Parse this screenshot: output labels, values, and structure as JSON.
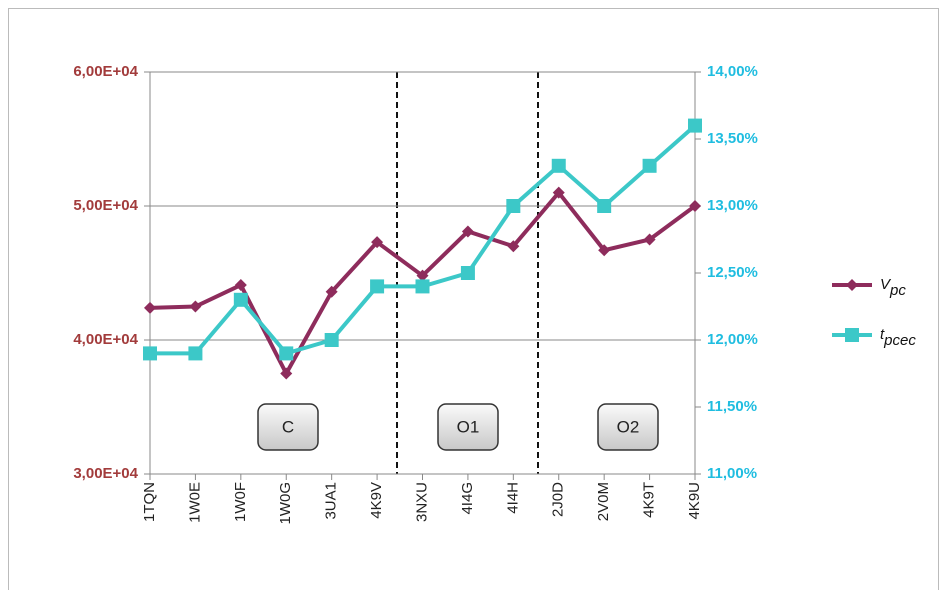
{
  "chart_data": {
    "type": "line",
    "categories": [
      "1TQN",
      "1W0E",
      "1W0F",
      "1W0G",
      "3UA1",
      "4K9V",
      "3NXU",
      "4I4G",
      "4I4H",
      "2J0D",
      "2V0M",
      "4K9T",
      "4K9U"
    ],
    "series": [
      {
        "name": "Vpc",
        "color": "#8e2c5c",
        "marker": "diamond",
        "values": [
          42400,
          42500,
          44100,
          37500,
          43600,
          47300,
          44800,
          48100,
          47000,
          51000,
          46700,
          47500,
          50000
        ]
      },
      {
        "name": "tpcec",
        "color": "#3cc8c8",
        "marker": "square",
        "axis": "y2",
        "values": [
          11.9,
          11.9,
          12.3,
          11.9,
          12.0,
          12.4,
          12.4,
          12.5,
          13.0,
          13.3,
          13.0,
          13.3,
          13.6
        ]
      }
    ],
    "ylim": [
      30000,
      60000
    ],
    "yticks": [
      {
        "value": 30000,
        "label": "3,00E+04"
      },
      {
        "value": 40000,
        "label": "4,00E+04"
      },
      {
        "value": 50000,
        "label": "5,00E+04"
      },
      {
        "value": 60000,
        "label": "6,00E+04"
      }
    ],
    "y2lim": [
      11,
      14
    ],
    "y2ticks": [
      {
        "value": 11,
        "label": "11,00%"
      },
      {
        "value": 11.5,
        "label": "11,50%"
      },
      {
        "value": 12,
        "label": "12,00%"
      },
      {
        "value": 12.5,
        "label": "12,50%"
      },
      {
        "value": 13,
        "label": "13,00%"
      },
      {
        "value": 13.5,
        "label": "13,50%"
      },
      {
        "value": 14,
        "label": "14,00%"
      }
    ],
    "grid": true,
    "legend": "right",
    "annotations": [
      "C",
      "O1",
      "O2"
    ]
  }
}
